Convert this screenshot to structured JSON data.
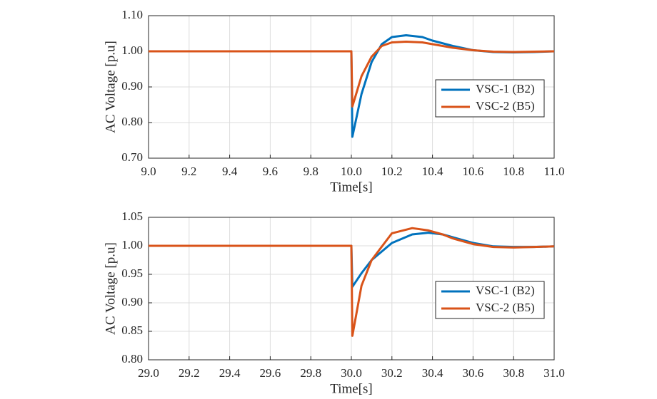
{
  "chart_data": [
    {
      "type": "line",
      "xlabel": "Time[s]",
      "ylabel": "AC Voltage [p.u]",
      "x": [
        9.0,
        10.0,
        10.005,
        10.05,
        10.1,
        10.15,
        10.2,
        10.27,
        10.35,
        10.4,
        10.5,
        10.6,
        10.7,
        10.8,
        10.9,
        11.0
      ],
      "series": [
        {
          "name": "VSC-1 (B2)",
          "color": "#0072BD",
          "values": [
            1.0,
            1.0,
            0.76,
            0.88,
            0.97,
            1.02,
            1.04,
            1.045,
            1.04,
            1.03,
            1.015,
            1.003,
            0.998,
            0.997,
            0.998,
            1.0
          ]
        },
        {
          "name": "VSC-2 (B5)",
          "color": "#D95319",
          "values": [
            1.0,
            1.0,
            0.845,
            0.93,
            0.985,
            1.015,
            1.025,
            1.027,
            1.025,
            1.02,
            1.01,
            1.003,
            0.999,
            0.998,
            0.999,
            1.0
          ]
        }
      ],
      "xlim": [
        9.0,
        11.0
      ],
      "xticks": [
        {
          "value": 9,
          "label": "9.0"
        },
        9.2,
        9.4,
        9.6,
        9.8,
        {
          "value": 10,
          "label": "10.0"
        },
        10.2,
        10.4,
        10.6,
        10.8,
        {
          "value": 11,
          "label": "11.0"
        }
      ],
      "ylim": [
        0.7,
        1.1
      ],
      "yticks": [
        {
          "value": 0.7,
          "label": "0.70"
        },
        {
          "value": 0.8,
          "label": "0.80"
        },
        {
          "value": 0.9,
          "label": "0.90"
        },
        {
          "value": 1.0,
          "label": "1.00"
        },
        {
          "value": 1.1,
          "label": "1.10"
        }
      ],
      "grid": true,
      "legend": "right"
    },
    {
      "type": "line",
      "xlabel": "Time[s]",
      "ylabel": "AC Voltage [p.u]",
      "x": [
        29.0,
        30.0,
        30.005,
        30.05,
        30.1,
        30.2,
        30.3,
        30.38,
        30.45,
        30.5,
        30.6,
        30.7,
        30.8,
        30.9,
        31.0
      ],
      "series": [
        {
          "name": "VSC-1 (B2)",
          "color": "#0072BD",
          "values": [
            1.0,
            1.0,
            0.928,
            0.952,
            0.975,
            1.005,
            1.02,
            1.023,
            1.02,
            1.015,
            1.005,
            0.999,
            0.998,
            0.998,
            0.999
          ]
        },
        {
          "name": "VSC-2 (B5)",
          "color": "#D95319",
          "values": [
            1.0,
            1.0,
            0.842,
            0.93,
            0.975,
            1.022,
            1.031,
            1.027,
            1.02,
            1.013,
            1.003,
            0.998,
            0.997,
            0.998,
            0.999
          ]
        }
      ],
      "xlim": [
        29.0,
        31.0
      ],
      "xticks": [
        {
          "value": 29,
          "label": "29.0"
        },
        29.2,
        29.4,
        29.6,
        29.8,
        {
          "value": 30,
          "label": "30.0"
        },
        30.2,
        30.4,
        30.6,
        30.8,
        {
          "value": 31,
          "label": "31.0"
        }
      ],
      "ylim": [
        0.8,
        1.05
      ],
      "yticks": [
        {
          "value": 0.8,
          "label": "0.80"
        },
        0.85,
        {
          "value": 0.9,
          "label": "0.90"
        },
        0.95,
        {
          "value": 1.0,
          "label": "1.00"
        },
        1.05
      ],
      "grid": true,
      "legend": "right"
    }
  ]
}
